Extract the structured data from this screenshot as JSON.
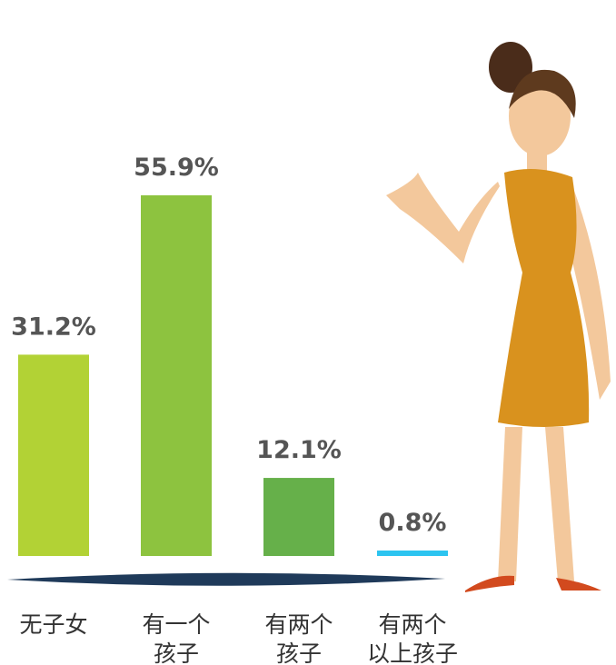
{
  "chart_data": {
    "type": "bar",
    "categories": [
      "无子女",
      "有一个\n孩子",
      "有两个\n孩子",
      "有两个\n以上孩子"
    ],
    "values": [
      31.2,
      55.9,
      12.1,
      0.8
    ],
    "value_labels": [
      "31.2%",
      "55.9%",
      "12.1%",
      "0.8%"
    ],
    "colors": [
      "#b2d235",
      "#8dc33f",
      "#66b04a",
      "#2cc4f0"
    ]
  }
}
